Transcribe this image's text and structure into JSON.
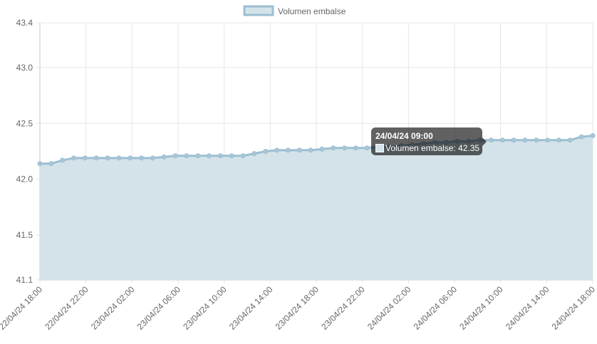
{
  "colors": {
    "line": "#9cbed2",
    "fill": "#d4e3ea",
    "point": "#a9c6d7",
    "grid": "#e6e6e6",
    "axis": "#c8c8c8",
    "text": "#666666"
  },
  "chart_data": {
    "type": "area",
    "legend": {
      "label": "Volumen embalse",
      "position": "top"
    },
    "grid": true,
    "ylim": [
      41.1,
      43.4
    ],
    "yticks": [
      "43.4",
      "43.0",
      "42.5",
      "42.0",
      "41.5",
      "41.1"
    ],
    "xticks": [
      "22/04/24 18:00",
      "22/04/24 22:00",
      "23/04/24 02:00",
      "23/04/24 06:00",
      "23/04/24 10:00",
      "23/04/24 14:00",
      "23/04/24 18:00",
      "23/04/24 22:00",
      "24/04/24 02:00",
      "24/04/24 06:00",
      "24/04/24 10:00",
      "24/04/24 14:00",
      "24/04/24 18:00"
    ],
    "x_start": "22/04/24 18:00",
    "x_step_hours": 1,
    "series": [
      {
        "name": "Volumen embalse",
        "values": [
          42.14,
          42.14,
          42.17,
          42.19,
          42.19,
          42.19,
          42.19,
          42.19,
          42.19,
          42.19,
          42.19,
          42.2,
          42.21,
          42.21,
          42.21,
          42.21,
          42.21,
          42.21,
          42.21,
          42.23,
          42.25,
          42.26,
          42.26,
          42.26,
          42.26,
          42.27,
          42.28,
          42.28,
          42.28,
          42.28,
          42.29,
          42.29,
          42.3,
          42.31,
          42.32,
          42.33,
          42.33,
          42.34,
          42.34,
          42.35,
          42.35,
          42.35,
          42.35,
          42.35,
          42.35,
          42.35,
          42.35,
          42.35,
          42.38,
          42.39
        ]
      }
    ],
    "tooltip": {
      "title": "24/04/24 09:00",
      "label": "Volumen embalse: 42.35"
    }
  }
}
